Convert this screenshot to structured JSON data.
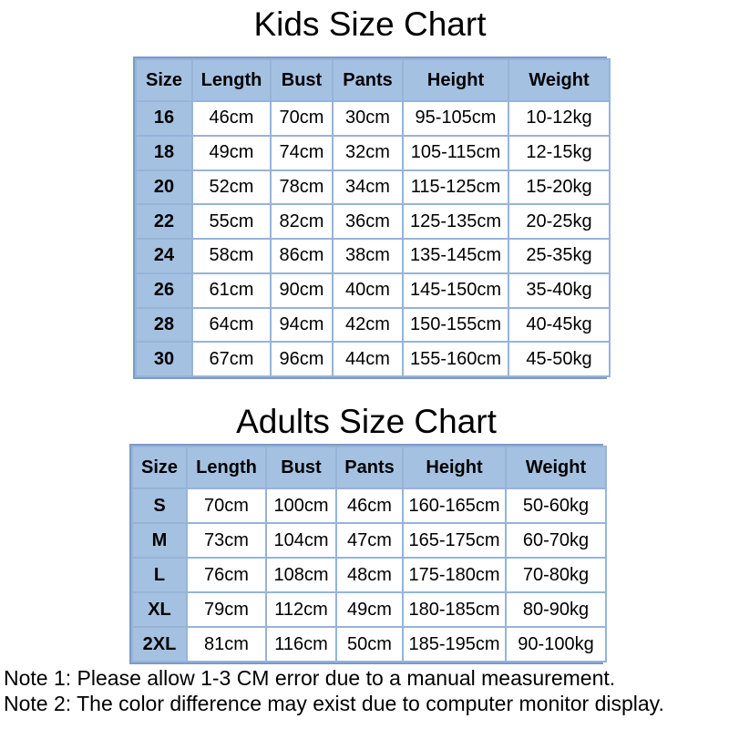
{
  "colors": {
    "header_fill": "#a5c1e1",
    "grid_line": "#96b4d8",
    "outer_border": "#7b9cc8",
    "text": "#000000",
    "background": "#ffffff"
  },
  "tables": [
    {
      "title": "Kids Size Chart",
      "columns": [
        "Size",
        "Length",
        "Bust",
        "Pants",
        "Height",
        "Weight"
      ],
      "rows": [
        [
          "16",
          "46cm",
          "70cm",
          "30cm",
          "95-105cm",
          "10-12kg"
        ],
        [
          "18",
          "49cm",
          "74cm",
          "32cm",
          "105-115cm",
          "12-15kg"
        ],
        [
          "20",
          "52cm",
          "78cm",
          "34cm",
          "115-125cm",
          "15-20kg"
        ],
        [
          "22",
          "55cm",
          "82cm",
          "36cm",
          "125-135cm",
          "20-25kg"
        ],
        [
          "24",
          "58cm",
          "86cm",
          "38cm",
          "135-145cm",
          "25-35kg"
        ],
        [
          "26",
          "61cm",
          "90cm",
          "40cm",
          "145-150cm",
          "35-40kg"
        ],
        [
          "28",
          "64cm",
          "94cm",
          "42cm",
          "150-155cm",
          "40-45kg"
        ],
        [
          "30",
          "67cm",
          "96cm",
          "44cm",
          "155-160cm",
          "45-50kg"
        ]
      ]
    },
    {
      "title": "Adults Size Chart",
      "columns": [
        "Size",
        "Length",
        "Bust",
        "Pants",
        "Height",
        "Weight"
      ],
      "rows": [
        [
          "S",
          "70cm",
          "100cm",
          "46cm",
          "160-165cm",
          "50-60kg"
        ],
        [
          "M",
          "73cm",
          "104cm",
          "47cm",
          "165-175cm",
          "60-70kg"
        ],
        [
          "L",
          "76cm",
          "108cm",
          "48cm",
          "175-180cm",
          "70-80kg"
        ],
        [
          "XL",
          "79cm",
          "112cm",
          "49cm",
          "180-185cm",
          "80-90kg"
        ],
        [
          "2XL",
          "81cm",
          "116cm",
          "50cm",
          "185-195cm",
          "90-100kg"
        ]
      ]
    }
  ],
  "notes": [
    "Note 1: Please allow 1-3 CM error due to a manual measurement.",
    "Note 2: The color difference may exist due to computer monitor display."
  ]
}
